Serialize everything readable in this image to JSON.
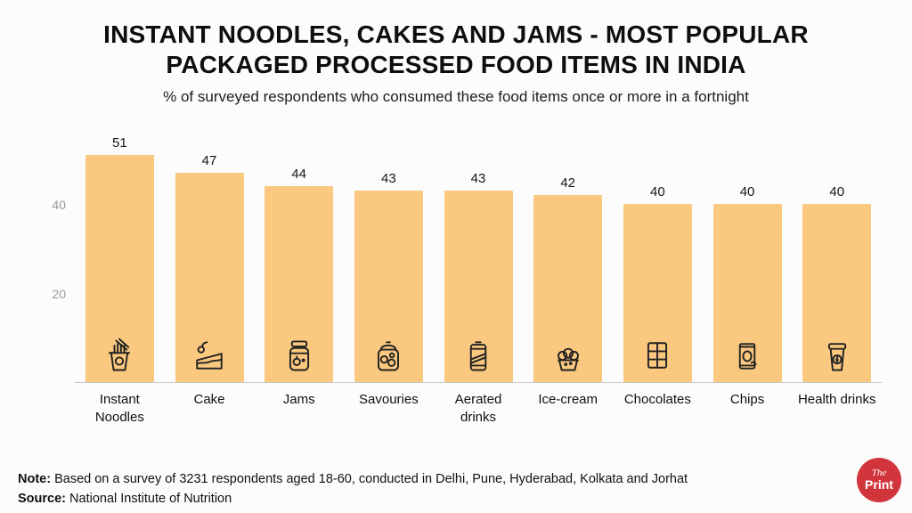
{
  "page": {
    "title_line1": "INSTANT NOODLES, CAKES AND JAMS - MOST POPULAR",
    "title_line2": "PACKAGED PROCESSED FOOD ITEMS IN INDIA",
    "subtitle": "% of surveyed respondents who consumed these food items once or more in a fortnight"
  },
  "chart_data": {
    "type": "bar",
    "title": "INSTANT NOODLES, CAKES AND JAMS - MOST POPULAR PACKAGED PROCESSED FOOD ITEMS IN INDIA",
    "subtitle": "% of surveyed respondents who consumed these food items once or more in a fortnight",
    "categories": [
      "Instant Noodles",
      "Cake",
      "Jams",
      "Savouries",
      "Aerated drinks",
      "Ice-cream",
      "Chocolates",
      "Chips",
      "Health drinks"
    ],
    "values": [
      51,
      47,
      44,
      43,
      43,
      42,
      40,
      40,
      40
    ],
    "icons": [
      "instant-noodles-icon",
      "cake-icon",
      "jam-jar-icon",
      "savouries-jar-icon",
      "soda-can-icon",
      "ice-cream-icon",
      "chocolate-bar-icon",
      "chips-bag-icon",
      "health-drink-icon"
    ],
    "xlabel": "",
    "ylabel": "",
    "yticks": [
      20,
      40
    ],
    "ylim": [
      0,
      55
    ],
    "grid": "off",
    "legend": "none",
    "bar_color": "#FAC87E"
  },
  "footer": {
    "note_label": "Note:",
    "note_text": "Based on a survey of 3231 respondents aged 18-60, conducted in Delhi, Pune, Hyderabad, Kolkata and Jorhat",
    "source_label": "Source:",
    "source_text": "National Institute of Nutrition"
  },
  "brand": {
    "logo_line1": "The",
    "logo_line2": "Print",
    "color": "#D2343C"
  }
}
